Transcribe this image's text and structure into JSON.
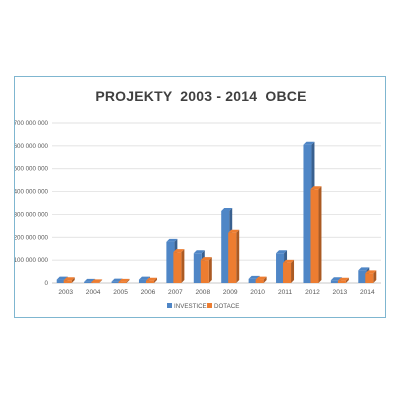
{
  "chart_data": {
    "type": "bar",
    "title": "PROJEKTY  2003 - 2014  OBCE",
    "categories": [
      "2003",
      "2004",
      "2005",
      "2006",
      "2007",
      "2008",
      "2009",
      "2010",
      "2011",
      "2012",
      "2013",
      "2014"
    ],
    "series": [
      {
        "name": "INVESTICE",
        "color": "#4f86c6",
        "values": [
          15000000,
          5000000,
          6000000,
          15000000,
          180000000,
          130000000,
          315000000,
          18000000,
          130000000,
          605000000,
          12000000,
          55000000
        ]
      },
      {
        "name": "DOTACE",
        "color": "#ed7d31",
        "values": [
          12000000,
          3000000,
          5000000,
          10000000,
          135000000,
          100000000,
          220000000,
          15000000,
          88000000,
          410000000,
          10000000,
          42000000
        ]
      }
    ],
    "ylim": [
      0,
      700000000
    ],
    "yticks": [
      0,
      100000000,
      200000000,
      300000000,
      400000000,
      500000000,
      600000000,
      700000000
    ],
    "ytick_labels": [
      "0",
      "100 000 000",
      "200 000 000",
      "300 000 000",
      "400 000 000",
      "500 000 000",
      "600 000 000",
      "700 000 000"
    ],
    "grid": true,
    "legend": "bottom"
  }
}
